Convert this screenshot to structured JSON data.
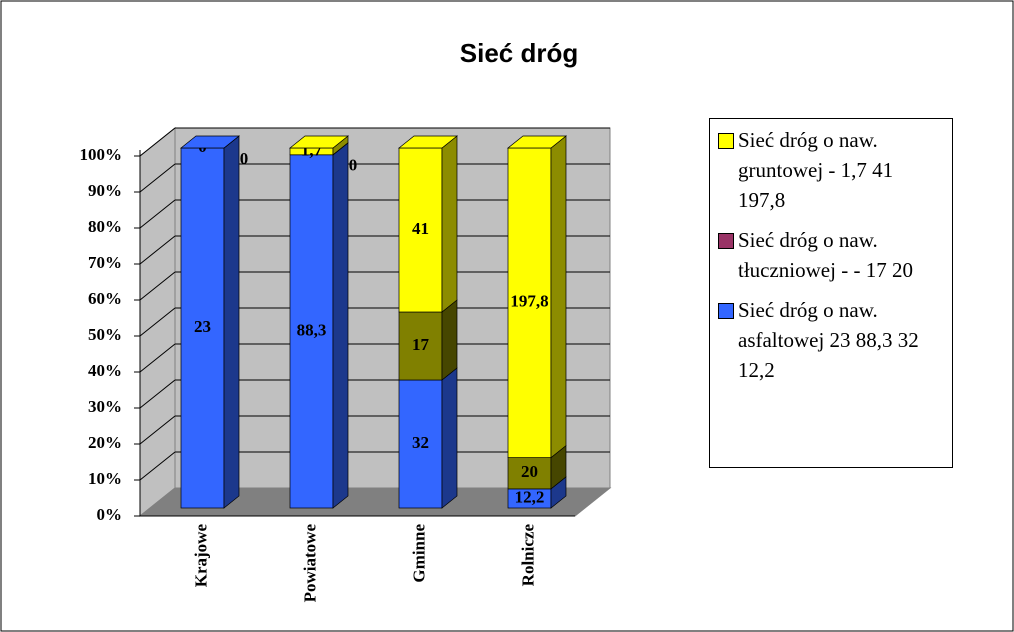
{
  "chart_data": {
    "type": "stacked_bar_100_3d",
    "title": "Sieć dróg",
    "categories": [
      "Krajowe",
      "Powiatowe",
      "Gminne",
      "Rolnicze"
    ],
    "series": [
      {
        "name": "Sieć dróg o naw. asfaltowej 23 88,3 32 12,2",
        "color": "#3366ff",
        "values": [
          23,
          88.3,
          32,
          12.2
        ],
        "value_labels": [
          "23",
          "88,3",
          "32",
          "12,2"
        ]
      },
      {
        "name": "Sieć dróg o naw. tłuczniowej - - 17 20",
        "color": "#993366",
        "fill_color": "#808000",
        "values": [
          0,
          0,
          17,
          20
        ]
      },
      {
        "name": "Sieć dróg o naw. gruntowej - 1,7 41 197,8",
        "color": "#ffff00",
        "values": [
          0,
          1.7,
          41,
          197.8
        ],
        "value_labels": [
          "0",
          "1,7",
          "41",
          "197,8"
        ]
      }
    ],
    "ylim": [
      0,
      100
    ],
    "yticks": [
      {
        "value": 0,
        "label": "0%"
      },
      {
        "value": 10,
        "label": "10%"
      },
      {
        "value": 20,
        "label": "20%"
      },
      {
        "value": 30,
        "label": "30%"
      },
      {
        "value": 40,
        "label": "40%"
      },
      {
        "value": 50,
        "label": "50%"
      },
      {
        "value": 60,
        "label": "60%"
      },
      {
        "value": 70,
        "label": "70%"
      },
      {
        "value": 80,
        "label": "80%"
      },
      {
        "value": 90,
        "label": "90%"
      },
      {
        "value": 100,
        "label": "100%"
      }
    ],
    "grid": true,
    "legend": "right"
  }
}
